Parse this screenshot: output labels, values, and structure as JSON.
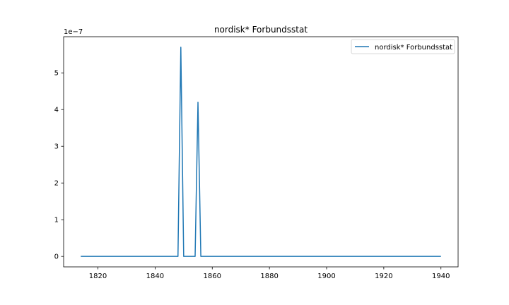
{
  "chart_data": {
    "type": "line",
    "title": "nordisk* Forbundsstat",
    "xlabel": "",
    "ylabel": "",
    "y_offset_label": "1e−7",
    "x_ticks": [
      1820,
      1840,
      1860,
      1880,
      1900,
      1920,
      1940
    ],
    "x_tick_labels": [
      "1820",
      "1840",
      "1860",
      "1880",
      "1900",
      "1920",
      "1940"
    ],
    "y_ticks": [
      0,
      1,
      2,
      3,
      4,
      5
    ],
    "y_tick_labels": [
      "0",
      "1",
      "2",
      "3",
      "4",
      "5"
    ],
    "xlim": [
      1808,
      1946
    ],
    "ylim": [
      -0.285,
      5.985
    ],
    "grid": false,
    "legend_position": "upper right",
    "line_color": "#1f77b4",
    "series": [
      {
        "name": "nordisk* Forbundsstat",
        "x": [
          1814,
          1848,
          1849,
          1850,
          1854,
          1855,
          1856,
          1940
        ],
        "y": [
          0,
          0,
          5.7,
          0,
          0,
          4.2,
          0,
          0
        ]
      }
    ]
  }
}
